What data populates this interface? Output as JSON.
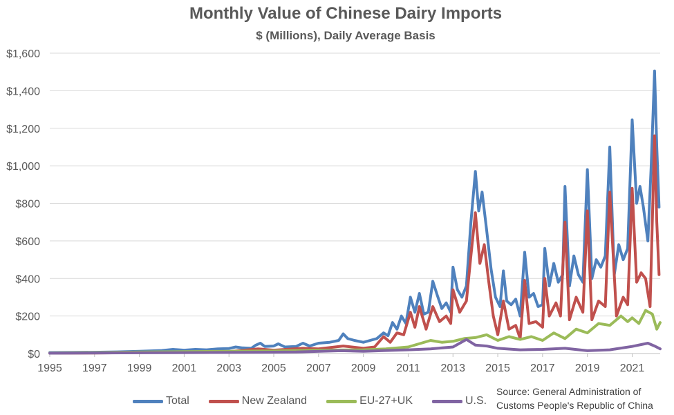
{
  "chart_data": {
    "type": "line",
    "title": "Monthly Value of Chinese Dairy Imports",
    "subtitle": "$ (Millions), Daily Average Basis",
    "xlabel": "",
    "ylabel": "",
    "xlim": [
      1995.0,
      2022.25
    ],
    "ylim": [
      0,
      1600
    ],
    "y_ticks": [
      0,
      200,
      400,
      600,
      800,
      1000,
      1200,
      1400,
      1600
    ],
    "y_tick_labels": [
      "$0",
      "$200",
      "$400",
      "$600",
      "$800",
      "$1,000",
      "$1,200",
      "$1,400",
      "$1,600"
    ],
    "x_ticks": [
      1995,
      1997,
      1999,
      2001,
      2003,
      2005,
      2007,
      2009,
      2011,
      2013,
      2015,
      2017,
      2019,
      2021
    ],
    "x_tick_labels": [
      "1995",
      "1997",
      "1999",
      "2001",
      "2003",
      "2005",
      "2007",
      "2009",
      "2011",
      "2013",
      "2015",
      "2017",
      "2019",
      "2021"
    ],
    "grid": "horizontal",
    "legend_position": "bottom",
    "series": [
      {
        "name": "Total",
        "color": "#4f81bd",
        "points": [
          [
            1995.0,
            5
          ],
          [
            1996.0,
            6
          ],
          [
            1997.0,
            7
          ],
          [
            1998.0,
            9
          ],
          [
            1999.0,
            12
          ],
          [
            2000.0,
            16
          ],
          [
            2000.5,
            22
          ],
          [
            2001.0,
            18
          ],
          [
            2001.5,
            22
          ],
          [
            2002.0,
            20
          ],
          [
            2002.5,
            25
          ],
          [
            2003.0,
            27
          ],
          [
            2003.3,
            35
          ],
          [
            2003.6,
            30
          ],
          [
            2004.0,
            28
          ],
          [
            2004.2,
            45
          ],
          [
            2004.4,
            55
          ],
          [
            2004.6,
            38
          ],
          [
            2005.0,
            40
          ],
          [
            2005.2,
            52
          ],
          [
            2005.5,
            35
          ],
          [
            2006.0,
            38
          ],
          [
            2006.3,
            55
          ],
          [
            2006.6,
            40
          ],
          [
            2007.0,
            55
          ],
          [
            2007.5,
            60
          ],
          [
            2007.9,
            70
          ],
          [
            2008.1,
            105
          ],
          [
            2008.3,
            80
          ],
          [
            2008.6,
            70
          ],
          [
            2009.0,
            60
          ],
          [
            2009.3,
            70
          ],
          [
            2009.6,
            80
          ],
          [
            2009.9,
            110
          ],
          [
            2010.1,
            95
          ],
          [
            2010.3,
            165
          ],
          [
            2010.5,
            130
          ],
          [
            2010.7,
            200
          ],
          [
            2010.9,
            160
          ],
          [
            2011.1,
            300
          ],
          [
            2011.3,
            220
          ],
          [
            2011.5,
            320
          ],
          [
            2011.7,
            210
          ],
          [
            2011.9,
            220
          ],
          [
            2012.1,
            385
          ],
          [
            2012.3,
            310
          ],
          [
            2012.5,
            240
          ],
          [
            2012.7,
            270
          ],
          [
            2012.9,
            220
          ],
          [
            2013.0,
            460
          ],
          [
            2013.2,
            340
          ],
          [
            2013.4,
            300
          ],
          [
            2013.6,
            360
          ],
          [
            2013.8,
            700
          ],
          [
            2014.0,
            970
          ],
          [
            2014.15,
            760
          ],
          [
            2014.3,
            860
          ],
          [
            2014.5,
            660
          ],
          [
            2014.7,
            450
          ],
          [
            2014.9,
            300
          ],
          [
            2015.1,
            250
          ],
          [
            2015.25,
            440
          ],
          [
            2015.4,
            280
          ],
          [
            2015.6,
            260
          ],
          [
            2015.8,
            290
          ],
          [
            2016.0,
            200
          ],
          [
            2016.2,
            540
          ],
          [
            2016.4,
            300
          ],
          [
            2016.6,
            320
          ],
          [
            2016.8,
            250
          ],
          [
            2017.0,
            260
          ],
          [
            2017.1,
            560
          ],
          [
            2017.3,
            360
          ],
          [
            2017.5,
            480
          ],
          [
            2017.7,
            380
          ],
          [
            2017.9,
            420
          ],
          [
            2018.0,
            890
          ],
          [
            2018.2,
            360
          ],
          [
            2018.4,
            520
          ],
          [
            2018.6,
            420
          ],
          [
            2018.8,
            380
          ],
          [
            2019.0,
            980
          ],
          [
            2019.2,
            400
          ],
          [
            2019.4,
            500
          ],
          [
            2019.6,
            460
          ],
          [
            2019.8,
            520
          ],
          [
            2020.0,
            1100
          ],
          [
            2020.2,
            420
          ],
          [
            2020.4,
            580
          ],
          [
            2020.6,
            500
          ],
          [
            2020.8,
            560
          ],
          [
            2021.0,
            1245
          ],
          [
            2021.2,
            800
          ],
          [
            2021.35,
            890
          ],
          [
            2021.5,
            780
          ],
          [
            2021.7,
            600
          ],
          [
            2021.85,
            1000
          ],
          [
            2022.0,
            1505
          ],
          [
            2022.1,
            1100
          ],
          [
            2022.2,
            780
          ]
        ]
      },
      {
        "name": "New Zealand",
        "color": "#c0504d",
        "points": [
          [
            1995.0,
            2
          ],
          [
            1997.0,
            3
          ],
          [
            1999.0,
            5
          ],
          [
            2001.0,
            7
          ],
          [
            2003.0,
            10
          ],
          [
            2004.3,
            25
          ],
          [
            2005.0,
            18
          ],
          [
            2006.3,
            28
          ],
          [
            2007.0,
            25
          ],
          [
            2008.1,
            40
          ],
          [
            2009.0,
            28
          ],
          [
            2009.5,
            35
          ],
          [
            2009.9,
            90
          ],
          [
            2010.2,
            60
          ],
          [
            2010.5,
            110
          ],
          [
            2010.8,
            100
          ],
          [
            2011.1,
            220
          ],
          [
            2011.3,
            140
          ],
          [
            2011.5,
            250
          ],
          [
            2011.8,
            130
          ],
          [
            2012.1,
            250
          ],
          [
            2012.4,
            170
          ],
          [
            2012.7,
            200
          ],
          [
            2012.9,
            160
          ],
          [
            2013.0,
            340
          ],
          [
            2013.3,
            220
          ],
          [
            2013.6,
            280
          ],
          [
            2013.8,
            520
          ],
          [
            2014.0,
            750
          ],
          [
            2014.2,
            480
          ],
          [
            2014.4,
            580
          ],
          [
            2014.6,
            380
          ],
          [
            2014.8,
            200
          ],
          [
            2015.0,
            100
          ],
          [
            2015.25,
            280
          ],
          [
            2015.5,
            130
          ],
          [
            2015.8,
            150
          ],
          [
            2016.0,
            80
          ],
          [
            2016.2,
            390
          ],
          [
            2016.4,
            160
          ],
          [
            2016.7,
            170
          ],
          [
            2017.0,
            140
          ],
          [
            2017.1,
            400
          ],
          [
            2017.3,
            200
          ],
          [
            2017.6,
            270
          ],
          [
            2017.8,
            200
          ],
          [
            2018.0,
            700
          ],
          [
            2018.2,
            180
          ],
          [
            2018.5,
            300
          ],
          [
            2018.8,
            220
          ],
          [
            2019.0,
            760
          ],
          [
            2019.2,
            180
          ],
          [
            2019.5,
            280
          ],
          [
            2019.8,
            250
          ],
          [
            2020.0,
            860
          ],
          [
            2020.3,
            200
          ],
          [
            2020.6,
            300
          ],
          [
            2020.8,
            260
          ],
          [
            2021.0,
            880
          ],
          [
            2021.2,
            380
          ],
          [
            2021.4,
            430
          ],
          [
            2021.6,
            400
          ],
          [
            2021.8,
            250
          ],
          [
            2022.0,
            1160
          ],
          [
            2022.1,
            700
          ],
          [
            2022.2,
            420
          ]
        ]
      },
      {
        "name": "EU-27+UK",
        "color": "#9bbb59",
        "points": [
          [
            1995.0,
            3
          ],
          [
            1997.0,
            5
          ],
          [
            1999.0,
            8
          ],
          [
            2001.0,
            10
          ],
          [
            2003.0,
            12
          ],
          [
            2005.0,
            14
          ],
          [
            2007.0,
            18
          ],
          [
            2009.0,
            20
          ],
          [
            2010.0,
            25
          ],
          [
            2011.0,
            35
          ],
          [
            2012.0,
            70
          ],
          [
            2012.5,
            60
          ],
          [
            2013.0,
            65
          ],
          [
            2013.5,
            80
          ],
          [
            2014.0,
            85
          ],
          [
            2014.5,
            100
          ],
          [
            2015.0,
            70
          ],
          [
            2015.5,
            90
          ],
          [
            2016.0,
            75
          ],
          [
            2016.5,
            90
          ],
          [
            2017.0,
            70
          ],
          [
            2017.5,
            110
          ],
          [
            2018.0,
            80
          ],
          [
            2018.5,
            130
          ],
          [
            2019.0,
            110
          ],
          [
            2019.5,
            160
          ],
          [
            2020.0,
            150
          ],
          [
            2020.5,
            200
          ],
          [
            2020.8,
            170
          ],
          [
            2021.0,
            190
          ],
          [
            2021.3,
            160
          ],
          [
            2021.6,
            230
          ],
          [
            2021.9,
            210
          ],
          [
            2022.1,
            130
          ],
          [
            2022.25,
            165
          ]
        ]
      },
      {
        "name": "U.S.",
        "color": "#8064a2",
        "points": [
          [
            1995.0,
            2
          ],
          [
            1999.0,
            4
          ],
          [
            2003.0,
            6
          ],
          [
            2006.0,
            8
          ],
          [
            2008.0,
            15
          ],
          [
            2009.0,
            12
          ],
          [
            2010.0,
            16
          ],
          [
            2011.0,
            20
          ],
          [
            2012.0,
            25
          ],
          [
            2013.0,
            35
          ],
          [
            2013.6,
            75
          ],
          [
            2014.0,
            45
          ],
          [
            2014.5,
            40
          ],
          [
            2015.0,
            28
          ],
          [
            2016.0,
            20
          ],
          [
            2017.0,
            22
          ],
          [
            2018.0,
            28
          ],
          [
            2019.0,
            15
          ],
          [
            2020.0,
            20
          ],
          [
            2021.0,
            38
          ],
          [
            2021.7,
            55
          ],
          [
            2022.0,
            40
          ],
          [
            2022.25,
            25
          ]
        ]
      }
    ]
  },
  "source_note": {
    "line1": "Source: General Administration of",
    "line2": "Customs People's Republic of China"
  }
}
